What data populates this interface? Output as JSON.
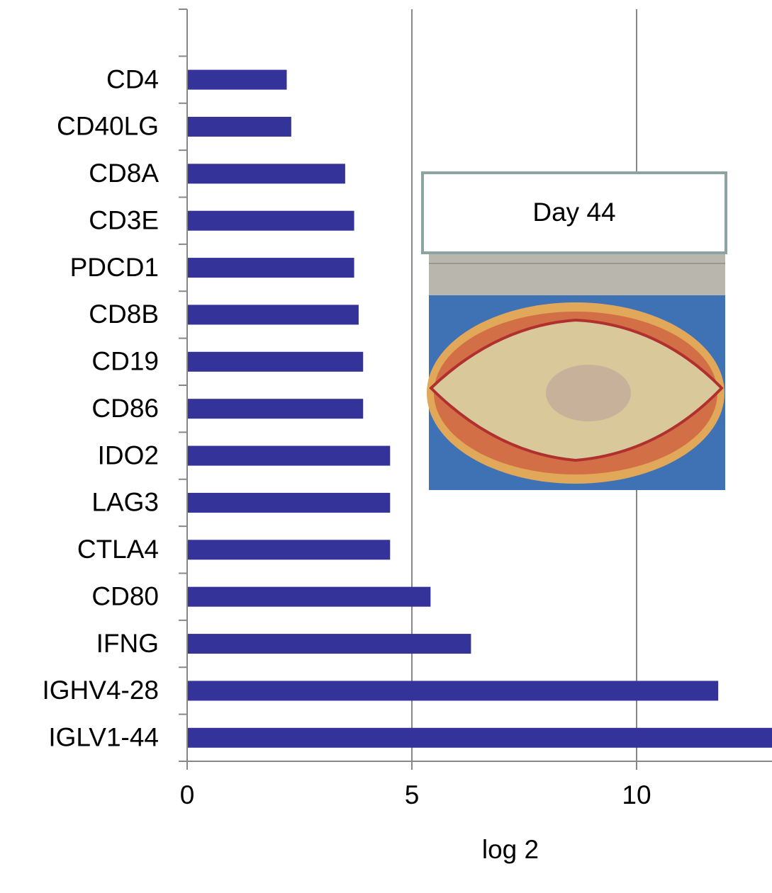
{
  "chart_data": {
    "type": "barh",
    "categories": [
      "CD4",
      "CD40LG",
      "CD8A",
      "CD3E",
      "PDCD1",
      "CD8B",
      "CD19",
      "CD86",
      "IDO2",
      "LAG3",
      "CTLA4",
      "CD80",
      "IFNG",
      "IGHV4-28",
      "IGLV1-44"
    ],
    "values": [
      2.2,
      2.3,
      3.5,
      3.7,
      3.7,
      3.8,
      3.9,
      3.9,
      4.5,
      4.5,
      4.5,
      5.4,
      6.3,
      11.8,
      13
    ],
    "color": "#333399",
    "xlabel": "log 2",
    "xlim": [
      0,
      13
    ],
    "xticks": [
      0,
      5,
      10
    ],
    "grid": true,
    "annotation": "Day 44"
  }
}
